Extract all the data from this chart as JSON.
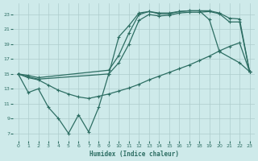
{
  "xlabel": "Humidex (Indice chaleur)",
  "bg_color": "#ceeaea",
  "grid_color": "#aecccc",
  "line_color": "#2d6e63",
  "xlim": [
    -0.5,
    23.5
  ],
  "ylim": [
    6,
    24.5
  ],
  "xticks": [
    0,
    1,
    2,
    3,
    4,
    5,
    6,
    7,
    8,
    9,
    10,
    11,
    12,
    13,
    14,
    15,
    16,
    17,
    18,
    19,
    20,
    21,
    22,
    23
  ],
  "yticks": [
    7,
    9,
    11,
    13,
    15,
    17,
    19,
    21,
    23
  ],
  "line1_x": [
    0,
    1,
    2,
    3,
    4,
    5,
    6,
    7,
    8,
    9,
    10,
    11,
    12,
    13,
    14,
    15,
    16,
    17,
    18,
    19,
    20,
    22,
    23
  ],
  "line1_y": [
    15,
    12.5,
    13,
    10.5,
    9,
    7,
    9.5,
    7.2,
    10.5,
    15,
    20,
    21.5,
    23.2,
    23.4,
    23.1,
    23.1,
    23.4,
    23.5,
    23.5,
    22.3,
    18.0,
    16.5,
    15.3
  ],
  "line2_x": [
    0,
    1,
    2,
    3,
    4,
    5,
    6,
    7,
    8,
    9,
    10,
    11,
    12,
    13,
    14,
    15,
    16,
    17,
    18,
    19,
    20,
    21,
    22,
    23
  ],
  "line2_y": [
    15,
    14.5,
    14.2,
    13.5,
    12.8,
    12.3,
    11.9,
    11.7,
    12.0,
    12.3,
    12.7,
    13.1,
    13.6,
    14.2,
    14.7,
    15.2,
    15.7,
    16.2,
    16.8,
    17.4,
    18.1,
    18.7,
    19.2,
    15.3
  ],
  "line3_x": [
    0,
    1,
    2,
    9,
    10,
    11,
    12,
    13,
    14,
    15,
    16,
    17,
    18,
    19,
    20,
    21,
    22,
    23
  ],
  "line3_y": [
    15,
    14.8,
    14.5,
    15.5,
    17.5,
    20.5,
    23.0,
    23.4,
    23.2,
    23.2,
    23.4,
    23.5,
    23.5,
    23.5,
    23.2,
    22.5,
    22.4,
    15.3
  ],
  "line4_x": [
    0,
    1,
    2,
    9,
    10,
    11,
    12,
    13,
    14,
    15,
    16,
    17,
    18,
    19,
    20,
    21,
    22,
    23
  ],
  "line4_y": [
    15,
    14.6,
    14.3,
    15.0,
    16.5,
    19.0,
    22.2,
    23.0,
    22.8,
    22.9,
    23.2,
    23.3,
    23.3,
    23.4,
    23.1,
    22.0,
    22.0,
    15.3
  ]
}
